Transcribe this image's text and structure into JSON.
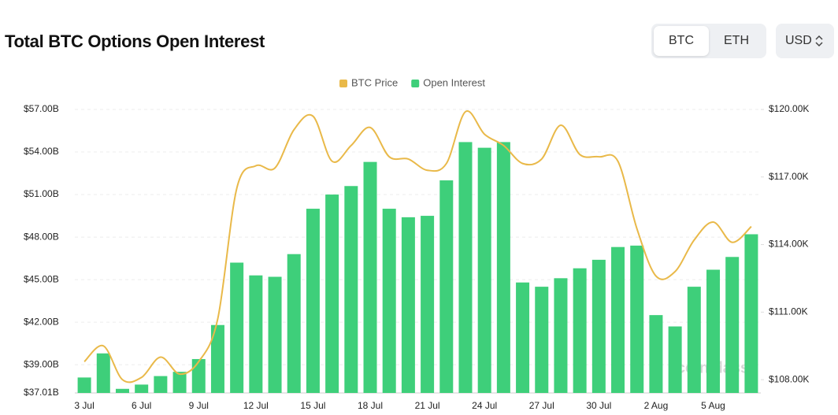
{
  "ui": {
    "title": "Total BTC Options Open Interest",
    "toggle": [
      "BTC",
      "ETH"
    ],
    "currency": "USD"
  },
  "chart_data": {
    "type": "bar-line",
    "watermark": "coinglass",
    "legend": "top",
    "categories": [
      "3 Jul",
      null,
      null,
      "6 Jul",
      null,
      null,
      "9 Jul",
      null,
      null,
      "12 Jul",
      null,
      null,
      "15 Jul",
      null,
      null,
      "18 Jul",
      null,
      null,
      "21 Jul",
      null,
      null,
      "24 Jul",
      null,
      null,
      "27 Jul",
      null,
      null,
      "30 Jul",
      null,
      null,
      "2 Aug",
      null,
      null,
      "5 Aug",
      null,
      null
    ],
    "series": [
      {
        "name": "BTC Price",
        "color": "#e9b949",
        "type": "line",
        "axis": "y2",
        "values": [
          108.8,
          109.5,
          108.0,
          108.1,
          109.0,
          108.25,
          108.8,
          110.7,
          116.5,
          117.5,
          117.4,
          119.1,
          119.7,
          117.7,
          118.4,
          119.2,
          117.9,
          117.8,
          117.3,
          117.6,
          119.9,
          118.9,
          118.4,
          117.6,
          117.8,
          119.3,
          118.0,
          117.9,
          117.7,
          114.7,
          112.6,
          112.8,
          114.2,
          115.0,
          114.1,
          114.8
        ]
      },
      {
        "name": "Open Interest",
        "color": "#3ecf7a",
        "type": "bar",
        "values": [
          38.1,
          39.8,
          37.3,
          37.6,
          38.2,
          38.5,
          39.4,
          41.8,
          46.2,
          45.3,
          45.2,
          46.8,
          50.0,
          51.0,
          51.6,
          53.3,
          50.0,
          49.4,
          49.5,
          52.0,
          54.7,
          54.3,
          54.7,
          44.8,
          44.5,
          45.1,
          45.8,
          46.4,
          47.3,
          47.4,
          42.5,
          41.7,
          44.5,
          45.7,
          46.6,
          48.2
        ]
      }
    ],
    "ylim": [
      37.01,
      57
    ],
    "yticks": [
      {
        "value": 37.01,
        "label": "$37.01B"
      },
      {
        "value": 39,
        "label": "$39.00B"
      },
      {
        "value": 42,
        "label": "$42.00B"
      },
      {
        "value": 45,
        "label": "$45.00B"
      },
      {
        "value": 48,
        "label": "$48.00B"
      },
      {
        "value": 51,
        "label": "$51.00B"
      },
      {
        "value": 54,
        "label": "$54.00B"
      },
      {
        "value": 57,
        "label": "$57.00B"
      }
    ],
    "y2lim": [
      107.41,
      120
    ],
    "y2ticks": [
      {
        "value": 108,
        "label": "$108.00K"
      },
      {
        "value": 111,
        "label": "$111.00K"
      },
      {
        "value": 114,
        "label": "$114.00K"
      },
      {
        "value": 117,
        "label": "$117.00K"
      },
      {
        "value": 120,
        "label": "$120.00K"
      }
    ],
    "grid": true
  }
}
